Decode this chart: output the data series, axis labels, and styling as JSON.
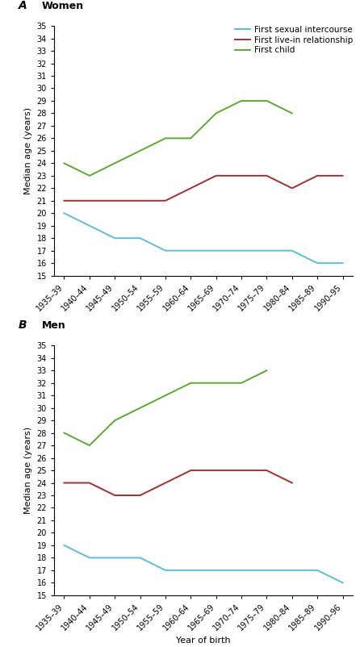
{
  "x_labels_women": [
    "1935–39",
    "1940–44",
    "1945–49",
    "1950–54",
    "1955–59",
    "1960–64",
    "1965–69",
    "1970–74",
    "1975–79",
    "1980–84",
    "1985–89",
    "1990–95"
  ],
  "x_labels_men": [
    "1935–39",
    "1940–44",
    "1945–49",
    "1950–54",
    "1955–59",
    "1960–64",
    "1965–69",
    "1970–74",
    "1975–79",
    "1980–84",
    "1985–89",
    "1990–96"
  ],
  "women_intercourse": [
    20,
    19,
    18,
    18,
    17,
    17,
    17,
    17,
    17,
    17,
    16,
    16
  ],
  "women_livein": [
    21,
    21,
    21,
    21,
    21,
    22,
    23,
    23,
    23,
    22,
    23,
    23
  ],
  "women_child": [
    24,
    23,
    24,
    25,
    26,
    26,
    28,
    29,
    29,
    28,
    null,
    null
  ],
  "men_intercourse": [
    19,
    18,
    18,
    18,
    17,
    17,
    17,
    17,
    17,
    17,
    17,
    16
  ],
  "men_livein": [
    24,
    24,
    23,
    23,
    24,
    25,
    25,
    25,
    25,
    24,
    null,
    null
  ],
  "men_child": [
    28,
    27,
    29,
    30,
    31,
    32,
    32,
    32,
    33,
    null,
    null,
    null
  ],
  "color_intercourse": "#5bbfcf",
  "color_livein": "#a03030",
  "color_child": "#5aaa30",
  "ylim": [
    15,
    35
  ],
  "yticks": [
    15,
    16,
    17,
    18,
    19,
    20,
    21,
    22,
    23,
    24,
    25,
    26,
    27,
    28,
    29,
    30,
    31,
    32,
    33,
    34,
    35
  ],
  "ylabel": "Median age (years)",
  "xlabel": "Year of birth",
  "label_a": "A",
  "label_b": "B",
  "subtitle_a": "Women",
  "subtitle_b": "Men",
  "legend_intercourse": "First sexual intercourse",
  "legend_livein": "First live-in relationship",
  "legend_child": "First child",
  "linewidth": 1.4
}
